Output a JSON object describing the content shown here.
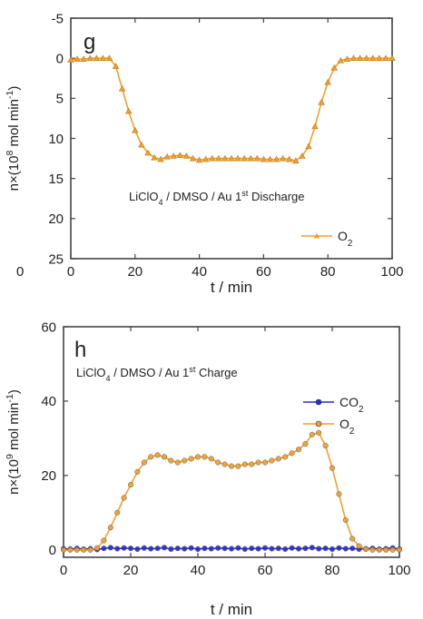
{
  "chart_data": [
    {
      "type": "line",
      "panel_label": "g",
      "annotation": {
        "base": "LiClO",
        "sub": "4",
        "mid": " / DMSO / Au 1",
        "sup": "st",
        "tail": " Discharge"
      },
      "xlabel": "t / min",
      "ylabel": {
        "base": "n×(10",
        "sup": "8",
        "tail": " mol min",
        "sup2": "-1",
        "close": ")"
      },
      "xlim": [
        0,
        100
      ],
      "ylim": [
        -5,
        25
      ],
      "y_inverted": true,
      "x_ticks": [
        "0",
        "20",
        "40",
        "60",
        "80",
        "100"
      ],
      "y_ticks": [
        "-5",
        "0",
        "5",
        "10",
        "15",
        "20",
        "25"
      ],
      "stray_tick_label": "0",
      "legend_position": "lower-right",
      "grid": false,
      "series": [
        {
          "name": {
            "base": "O",
            "sub": "2"
          },
          "color": "#f0a030",
          "marker": "triangle",
          "x": [
            0,
            2,
            4,
            6,
            8,
            10,
            12,
            14,
            16,
            18,
            20,
            22,
            24,
            26,
            28,
            30,
            32,
            34,
            36,
            38,
            40,
            42,
            44,
            46,
            48,
            50,
            52,
            54,
            56,
            58,
            60,
            62,
            64,
            66,
            68,
            70,
            72,
            74,
            76,
            78,
            80,
            82,
            84,
            86,
            88,
            90,
            92,
            94,
            96,
            98,
            100
          ],
          "y": [
            0.2,
            0.1,
            0.1,
            0.0,
            0.0,
            0.0,
            0.0,
            1.0,
            3.8,
            6.6,
            9.0,
            10.8,
            11.8,
            12.4,
            12.6,
            12.3,
            12.2,
            12.1,
            12.2,
            12.5,
            12.7,
            12.6,
            12.5,
            12.5,
            12.5,
            12.5,
            12.5,
            12.5,
            12.5,
            12.5,
            12.6,
            12.6,
            12.6,
            12.5,
            12.6,
            12.8,
            12.2,
            11.0,
            8.5,
            5.5,
            3.0,
            1.2,
            0.3,
            0.1,
            0.0,
            0.0,
            0.0,
            0.0,
            0.0,
            0.0,
            0.0
          ]
        }
      ]
    },
    {
      "type": "line",
      "panel_label": "h",
      "annotation": {
        "base": "LiClO",
        "sub": "4",
        "mid": " / DMSO / Au 1",
        "sup": "st",
        "tail": " Charge"
      },
      "xlabel": "t / min",
      "ylabel": {
        "base": "n×(10",
        "sup": "9",
        "tail": " mol min",
        "sup2": "-1",
        "close": ")"
      },
      "xlim": [
        0,
        100
      ],
      "ylim": [
        -2,
        60
      ],
      "x_ticks": [
        "0",
        "20",
        "40",
        "60",
        "80",
        "100"
      ],
      "y_ticks": [
        "0",
        "20",
        "40",
        "60"
      ],
      "legend_position": "upper-right",
      "grid": false,
      "series": [
        {
          "name": {
            "base": "CO",
            "sub": "2"
          },
          "color": "#2a2ad0",
          "marker": "circle",
          "x": [
            0,
            2,
            4,
            6,
            8,
            10,
            12,
            14,
            16,
            18,
            20,
            22,
            24,
            26,
            28,
            30,
            32,
            34,
            36,
            38,
            40,
            42,
            44,
            46,
            48,
            50,
            52,
            54,
            56,
            58,
            60,
            62,
            64,
            66,
            68,
            70,
            72,
            74,
            76,
            78,
            80,
            82,
            84,
            86,
            88,
            90,
            92,
            94,
            96,
            98,
            100
          ],
          "y": [
            0.3,
            0.2,
            0.4,
            0.2,
            0.3,
            0.1,
            0.4,
            0.6,
            0.3,
            0.5,
            0.4,
            0.2,
            0.5,
            0.3,
            0.4,
            0.6,
            0.2,
            0.4,
            0.3,
            0.5,
            0.2,
            0.4,
            0.3,
            0.5,
            0.4,
            0.3,
            0.5,
            0.2,
            0.4,
            0.3,
            0.5,
            0.3,
            0.4,
            0.2,
            0.5,
            0.3,
            0.4,
            0.6,
            0.3,
            0.4,
            0.2,
            0.5,
            0.3,
            0.4,
            0.2,
            0.3,
            0.4,
            0.2,
            0.3,
            0.5,
            0.2
          ]
        },
        {
          "name": {
            "base": "O",
            "sub": "2"
          },
          "color": "#f0a030",
          "marker": "circle",
          "x": [
            0,
            2,
            4,
            6,
            8,
            10,
            12,
            14,
            16,
            18,
            20,
            22,
            24,
            26,
            28,
            30,
            32,
            34,
            36,
            38,
            40,
            42,
            44,
            46,
            48,
            50,
            52,
            54,
            56,
            58,
            60,
            62,
            64,
            66,
            68,
            70,
            72,
            74,
            76,
            78,
            80,
            82,
            84,
            86,
            88,
            90,
            92,
            94,
            96,
            98,
            100
          ],
          "y": [
            0,
            0,
            0,
            0,
            0,
            0.5,
            2.5,
            6.0,
            10.0,
            14.0,
            17.5,
            21.0,
            23.5,
            25.0,
            25.5,
            25.0,
            24.0,
            23.5,
            24.0,
            24.5,
            25.0,
            25.0,
            24.5,
            23.5,
            23.0,
            22.5,
            22.5,
            23.0,
            23.0,
            23.5,
            23.5,
            24.0,
            24.5,
            25.0,
            26.0,
            27.0,
            28.5,
            31.0,
            31.5,
            28.0,
            22.0,
            15.0,
            8.0,
            3.0,
            1.0,
            0.2,
            0,
            0,
            0,
            0,
            0
          ]
        }
      ]
    }
  ]
}
